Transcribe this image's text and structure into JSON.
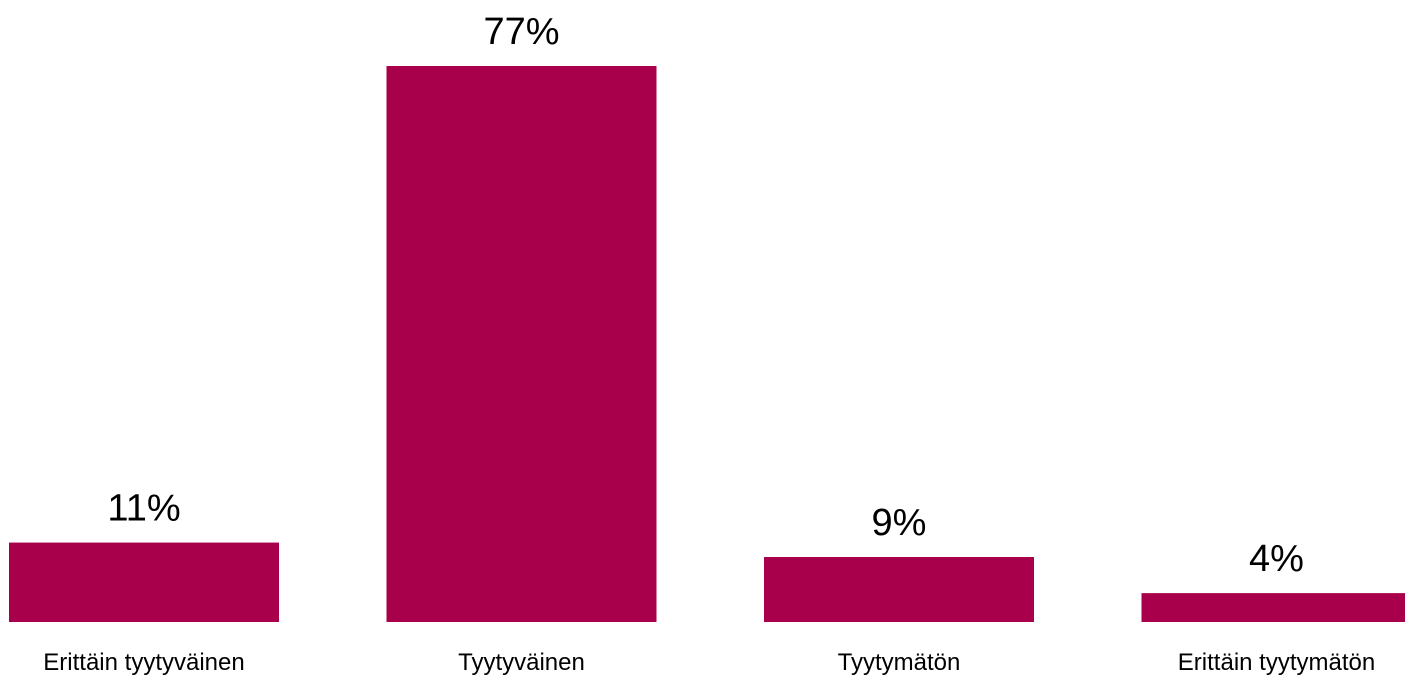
{
  "chart_data": {
    "type": "bar",
    "categories": [
      "Erittäin tyytyväinen",
      "Tyytyväinen",
      "Tyytymätön",
      "Erittäin tyytymätön"
    ],
    "values": [
      11,
      77,
      9,
      4
    ],
    "data_labels": [
      "11%",
      "77%",
      "9%",
      "4%"
    ],
    "unit": "%",
    "bar_color": "#A8004A",
    "grid": false,
    "legend": "none",
    "ylim": [
      0,
      77
    ]
  }
}
